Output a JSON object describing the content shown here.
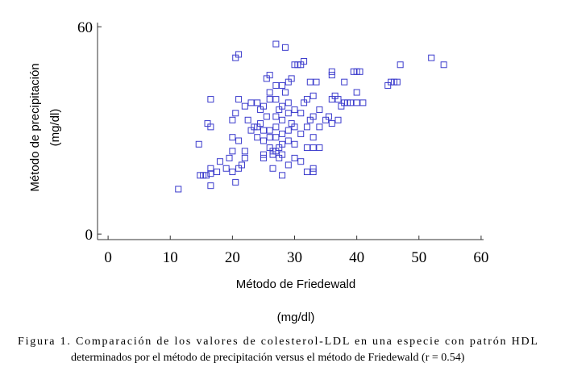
{
  "chart_data": {
    "type": "scatter",
    "y_label": [
      "Método de precipitación",
      "(mg/dl)"
    ],
    "x_label": [
      "Método de Friedewald",
      "(mg/dl)"
    ],
    "caption": [
      "Figura 1. Comparación de los valores de colesterol-LDL en una especie con patrón HDL",
      "determinados por el método de precipitación versus el método de Friedewald (r = 0.54)"
    ],
    "color": "#3a3acc",
    "xlim": [
      -1.7,
      60.4
    ],
    "ylim": [
      -1.6,
      61.2
    ],
    "xticks": [
      0,
      10,
      20,
      30,
      40,
      50,
      60
    ],
    "yticks": [
      0,
      60
    ],
    "x": [
      11.3,
      14.6,
      14.8,
      15.3,
      15.8,
      16.5,
      16.5,
      16.5,
      16,
      16.5,
      16.5,
      17.5,
      18,
      19,
      19.5,
      20,
      20,
      20,
      20,
      20.5,
      20.5,
      21,
      20.5,
      21,
      21.5,
      21,
      21,
      22,
      22,
      22,
      22.5,
      23,
      23,
      23.5,
      24,
      24,
      24,
      24.5,
      24.5,
      25,
      25,
      25,
      25,
      25,
      25.5,
      25.5,
      26,
      26,
      26,
      26,
      26,
      26,
      26.5,
      26.5,
      26.5,
      27,
      27,
      27,
      27,
      27,
      27,
      27,
      27.5,
      27.5,
      27.5,
      28,
      28,
      28,
      28,
      28,
      28,
      28,
      28.5,
      28.5,
      29,
      29,
      29,
      29,
      29,
      29,
      29.5,
      29.5,
      30,
      30,
      30,
      30,
      30,
      30.5,
      31,
      31,
      31,
      31,
      31.5,
      31.5,
      32,
      32,
      32,
      32,
      32.5,
      32.5,
      33,
      33,
      33,
      33,
      33,
      33,
      33.5,
      34,
      34,
      34,
      35,
      35.5,
      36,
      36,
      36,
      36,
      36.5,
      37,
      37,
      37.5,
      38,
      38,
      38.5,
      39,
      39.5,
      40,
      40,
      40,
      40.5,
      41,
      45,
      45.5,
      46,
      46.5,
      47,
      52,
      54
    ],
    "values": [
      13,
      26,
      17,
      17,
      17,
      19,
      17.5,
      14,
      32,
      31,
      39,
      18,
      21,
      19,
      22,
      24,
      28,
      33,
      18,
      15,
      51,
      52,
      35,
      19,
      20,
      39,
      27,
      22,
      24,
      37,
      33,
      30,
      38,
      31,
      31,
      28,
      38,
      32,
      36,
      22,
      27,
      30,
      37,
      23,
      34,
      45,
      46,
      41,
      39,
      30,
      28,
      25,
      24,
      23,
      19,
      24,
      28,
      31,
      34,
      39,
      43,
      55,
      22,
      25,
      36,
      17,
      23,
      26,
      29,
      33,
      37,
      43,
      41,
      54,
      20,
      27,
      30,
      35,
      38,
      44,
      45,
      32,
      49,
      36,
      31,
      26,
      22,
      49,
      49,
      35,
      29,
      21,
      50,
      38,
      39,
      31,
      25,
      18,
      44,
      33,
      40,
      34,
      28,
      25,
      19,
      18,
      44,
      36,
      31,
      25,
      33,
      34,
      47,
      46,
      39,
      32,
      40,
      39,
      33,
      37,
      38,
      44,
      38,
      38,
      47,
      47,
      41,
      38,
      47,
      38,
      43,
      44,
      44,
      44,
      49,
      51,
      49
    ]
  }
}
